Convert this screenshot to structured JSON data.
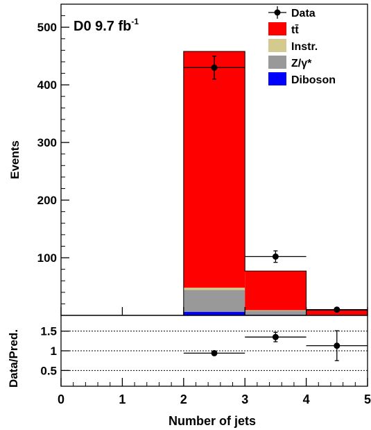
{
  "chart_data": [
    {
      "type": "bar",
      "stacked": true,
      "annotation": {
        "main": "D0 9.7 fb",
        "sup": "-1"
      },
      "ylabel": "Events",
      "xlim": [
        0,
        5
      ],
      "ylim": [
        0,
        540
      ],
      "y_ticks": [
        100,
        200,
        300,
        400,
        500
      ],
      "bin_edges": [
        0,
        1,
        2,
        3,
        4,
        5
      ],
      "series": [
        {
          "name": "Diboson",
          "color": "#0000ff",
          "values": [
            0,
            0,
            6,
            1,
            0
          ]
        },
        {
          "name": "Z/γ*",
          "color": "#999999",
          "values": [
            0,
            0,
            38,
            7,
            1
          ]
        },
        {
          "name": "Instr.",
          "color": "#d4ca8f",
          "values": [
            0,
            0,
            4,
            1,
            0
          ]
        },
        {
          "name": "tt̄",
          "color": "#ff0000",
          "values": [
            0,
            0,
            410,
            68,
            8
          ]
        }
      ],
      "data_points": {
        "name": "Data",
        "x": [
          2.5,
          3.5,
          4.5
        ],
        "y": [
          430,
          102,
          10
        ],
        "y_err": [
          20,
          10,
          3
        ]
      },
      "legend_position": "top-right"
    },
    {
      "type": "scatter",
      "xlabel": "Number of jets",
      "ylabel": "Data/Pred.",
      "xlim": [
        0,
        5
      ],
      "ylim": [
        0.1,
        1.9
      ],
      "x_ticks": [
        0,
        1,
        2,
        3,
        4,
        5
      ],
      "y_ticks": [
        0.5,
        1,
        1.5
      ],
      "y_tick_labels": [
        "0.5",
        "1",
        "1.5"
      ],
      "gridlines_dashed": [
        0.5,
        1,
        1.5
      ],
      "x": [
        2.5,
        3.5,
        4.5
      ],
      "y": [
        0.94,
        1.35,
        1.13
      ],
      "y_err": [
        0.05,
        0.12,
        0.38
      ]
    }
  ]
}
